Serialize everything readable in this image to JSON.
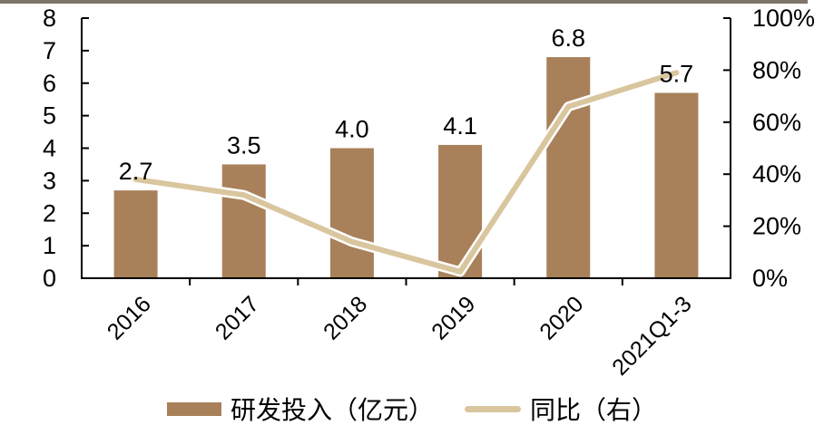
{
  "page": {
    "background": "#ffffff",
    "top_border_color": "#7C7568"
  },
  "chart_data": {
    "type": "bar",
    "subtype": "bar-line-combo",
    "categories": [
      "2016",
      "2017",
      "2018",
      "2019",
      "2020",
      "2021Q1-3"
    ],
    "series": [
      {
        "name": "研发投入（亿元）",
        "type": "bar",
        "axis": "left",
        "color": "#A8815A",
        "values": [
          2.7,
          3.5,
          4.0,
          4.1,
          6.8,
          5.7
        ],
        "value_labels": [
          "2.7",
          "3.5",
          "4.0",
          "4.1",
          "6.8",
          "5.7"
        ]
      },
      {
        "name": "同比（右）",
        "type": "line",
        "axis": "right",
        "color": "#D9C69E",
        "values_percent": [
          38,
          32,
          14,
          2.5,
          66,
          79
        ]
      }
    ],
    "axes": {
      "left": {
        "min": 0,
        "max": 8,
        "tick_labels": [
          "0",
          "1",
          "2",
          "3",
          "4",
          "5",
          "6",
          "7",
          "8"
        ]
      },
      "right": {
        "min": 0,
        "max": 100,
        "tick_labels": [
          "0%",
          "20%",
          "40%",
          "60%",
          "80%",
          "100%"
        ]
      },
      "color": "#000000"
    },
    "grid": "off",
    "legend_position": "bottom-center"
  }
}
